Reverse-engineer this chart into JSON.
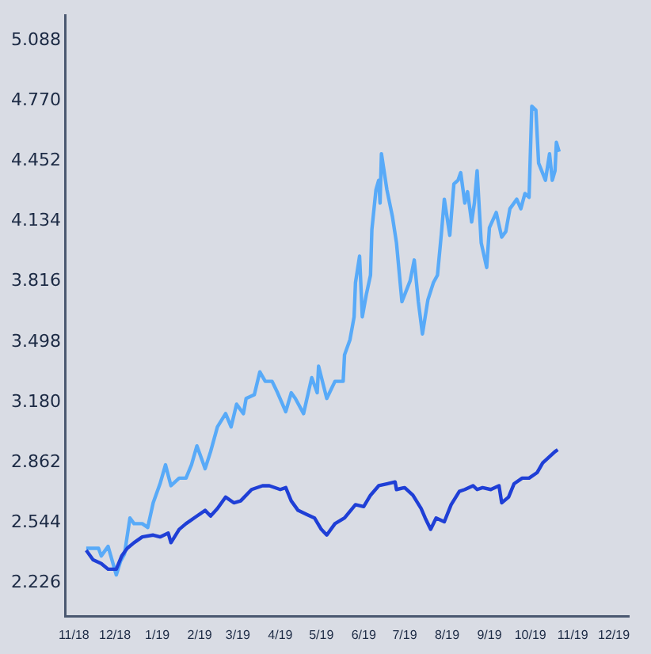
{
  "chart_data": {
    "type": "line",
    "legend": false,
    "grid": false,
    "marker": "none",
    "line_style": "solid",
    "xlim": [
      "2018-10-26",
      "2019-12-12"
    ],
    "xticks": [
      {
        "value": "2018-11-01",
        "label": "11/18"
      },
      {
        "value": "2018-12-01",
        "label": "12/18"
      },
      {
        "value": "2019-01-01",
        "label": "1/19"
      },
      {
        "value": "2019-02-01",
        "label": "2/19"
      },
      {
        "value": "2019-03-01",
        "label": "3/19"
      },
      {
        "value": "2019-04-01",
        "label": "4/19"
      },
      {
        "value": "2019-05-01",
        "label": "5/19"
      },
      {
        "value": "2019-06-01",
        "label": "6/19"
      },
      {
        "value": "2019-07-01",
        "label": "7/19"
      },
      {
        "value": "2019-08-01",
        "label": "8/19"
      },
      {
        "value": "2019-09-01",
        "label": "9/19"
      },
      {
        "value": "2019-10-01",
        "label": "10/19"
      },
      {
        "value": "2019-11-01",
        "label": "11/19"
      },
      {
        "value": "2019-12-01",
        "label": "12/19"
      }
    ],
    "ylim": [
      2.05,
      5.22
    ],
    "yticks": [
      2.226,
      2.544,
      2.862,
      {
        "value": 3.18,
        "label": "3.180"
      },
      3.498,
      3.816,
      4.134,
      4.452,
      {
        "value": 4.77,
        "label": "4.770"
      },
      5.088
    ],
    "series": [
      {
        "color": "#1f3fd6",
        "x": [
          "2018-11-10",
          "2018-11-15",
          "2018-11-21",
          "2018-11-26",
          "2018-12-02",
          "2018-12-06",
          "2018-12-10",
          "2018-12-15",
          "2018-12-21",
          "2018-12-29",
          "2019-01-03",
          "2019-01-09",
          "2019-01-11",
          "2019-01-17",
          "2019-01-22",
          "2019-01-30",
          "2019-02-05",
          "2019-02-09",
          "2019-02-14",
          "2019-02-20",
          "2019-02-26",
          "2019-03-03",
          "2019-03-11",
          "2019-03-19",
          "2019-03-24",
          "2019-04-01",
          "2019-04-05",
          "2019-04-09",
          "2019-04-14",
          "2019-04-20",
          "2019-04-26",
          "2019-05-01",
          "2019-05-05",
          "2019-05-11",
          "2019-05-18",
          "2019-05-26",
          "2019-06-01",
          "2019-06-06",
          "2019-06-12",
          "2019-06-18",
          "2019-06-24",
          "2019-06-25",
          "2019-07-01",
          "2019-07-07",
          "2019-07-13",
          "2019-07-16",
          "2019-07-20",
          "2019-07-24",
          "2019-07-30",
          "2019-08-04",
          "2019-08-10",
          "2019-08-14",
          "2019-08-20",
          "2019-08-23",
          "2019-08-27",
          "2019-09-02",
          "2019-09-08",
          "2019-09-10",
          "2019-09-15",
          "2019-09-19",
          "2019-09-25",
          "2019-09-30",
          "2019-10-06",
          "2019-10-10",
          "2019-10-16",
          "2019-10-19",
          "2019-10-21"
        ],
        "values": [
          2.4,
          2.35,
          2.33,
          2.3,
          2.3,
          2.37,
          2.41,
          2.44,
          2.47,
          2.48,
          2.47,
          2.49,
          2.44,
          2.51,
          2.54,
          2.58,
          2.61,
          2.58,
          2.62,
          2.68,
          2.65,
          2.66,
          2.72,
          2.74,
          2.74,
          2.72,
          2.73,
          2.66,
          2.61,
          2.59,
          2.57,
          2.51,
          2.48,
          2.54,
          2.57,
          2.64,
          2.63,
          2.69,
          2.74,
          2.75,
          2.76,
          2.72,
          2.73,
          2.69,
          2.62,
          2.57,
          2.51,
          2.57,
          2.55,
          2.64,
          2.71,
          2.72,
          2.74,
          2.72,
          2.73,
          2.72,
          2.74,
          2.65,
          2.68,
          2.75,
          2.78,
          2.78,
          2.81,
          2.86,
          2.9,
          2.92,
          2.93
        ]
      },
      {
        "color": "#58aaf8",
        "x": [
          "2018-11-10",
          "2018-11-13",
          "2018-11-19",
          "2018-11-21",
          "2018-11-26",
          "2018-11-28",
          "2018-12-02",
          "2018-12-05",
          "2018-12-08",
          "2018-12-12",
          "2018-12-15",
          "2018-12-21",
          "2018-12-25",
          "2018-12-29",
          "2019-01-03",
          "2019-01-07",
          "2019-01-11",
          "2019-01-17",
          "2019-01-22",
          "2019-01-26",
          "2019-01-30",
          "2019-02-05",
          "2019-02-09",
          "2019-02-14",
          "2019-02-20",
          "2019-02-24",
          "2019-02-28",
          "2019-03-05",
          "2019-03-07",
          "2019-03-13",
          "2019-03-17",
          "2019-03-21",
          "2019-03-26",
          "2019-03-30",
          "2019-04-05",
          "2019-04-09",
          "2019-04-12",
          "2019-04-18",
          "2019-04-24",
          "2019-04-28",
          "2019-04-29",
          "2019-05-05",
          "2019-05-11",
          "2019-05-17",
          "2019-05-18",
          "2019-05-22",
          "2019-05-25",
          "2019-05-26",
          "2019-05-29",
          "2019-05-31",
          "2019-06-03",
          "2019-06-06",
          "2019-06-07",
          "2019-06-10",
          "2019-06-12",
          "2019-06-13",
          "2019-06-14",
          "2019-06-18",
          "2019-06-22",
          "2019-06-25",
          "2019-06-29",
          "2019-07-05",
          "2019-07-08",
          "2019-07-11",
          "2019-07-14",
          "2019-07-18",
          "2019-07-22",
          "2019-07-25",
          "2019-07-28",
          "2019-07-30",
          "2019-08-03",
          "2019-08-06",
          "2019-08-09",
          "2019-08-11",
          "2019-08-14",
          "2019-08-16",
          "2019-08-19",
          "2019-08-21",
          "2019-08-23",
          "2019-08-26",
          "2019-08-30",
          "2019-09-01",
          "2019-09-06",
          "2019-09-10",
          "2019-09-13",
          "2019-09-16",
          "2019-09-21",
          "2019-09-24",
          "2019-09-27",
          "2019-09-30",
          "2019-10-02",
          "2019-10-05",
          "2019-10-07",
          "2019-10-12",
          "2019-10-15",
          "2019-10-17",
          "2019-10-19",
          "2019-10-20",
          "2019-10-22"
        ],
        "values": [
          2.41,
          2.41,
          2.41,
          2.37,
          2.42,
          2.37,
          2.27,
          2.34,
          2.38,
          2.57,
          2.54,
          2.54,
          2.52,
          2.65,
          2.75,
          2.85,
          2.74,
          2.78,
          2.78,
          2.85,
          2.95,
          2.83,
          2.92,
          3.05,
          3.12,
          3.05,
          3.17,
          3.12,
          3.2,
          3.22,
          3.34,
          3.29,
          3.29,
          3.23,
          3.13,
          3.23,
          3.2,
          3.12,
          3.31,
          3.23,
          3.37,
          3.2,
          3.29,
          3.29,
          3.43,
          3.51,
          3.63,
          3.81,
          3.95,
          3.63,
          3.75,
          3.85,
          4.09,
          4.3,
          4.35,
          4.23,
          4.49,
          4.3,
          4.16,
          4.02,
          3.71,
          3.82,
          3.93,
          3.71,
          3.54,
          3.72,
          3.81,
          3.85,
          4.08,
          4.25,
          4.06,
          4.33,
          4.35,
          4.39,
          4.23,
          4.29,
          4.13,
          4.23,
          4.4,
          4.02,
          3.89,
          4.1,
          4.18,
          4.05,
          4.08,
          4.2,
          4.25,
          4.2,
          4.28,
          4.26,
          4.74,
          4.72,
          4.44,
          4.35,
          4.49,
          4.35,
          4.4,
          4.55,
          4.5
        ]
      }
    ]
  }
}
